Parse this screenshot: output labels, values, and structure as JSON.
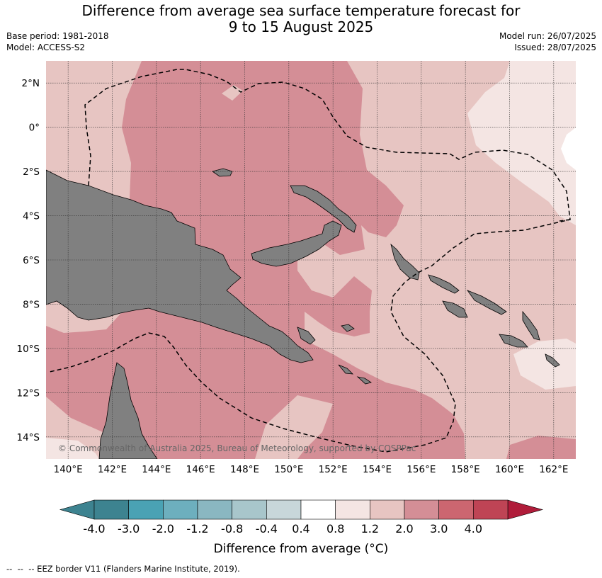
{
  "title": {
    "line1": "Difference from average sea surface temperature forecast for",
    "line2": "9 to 15 August 2025"
  },
  "meta": {
    "base_period": "Base period: 1981-2018",
    "model": "Model: ACCESS-S2",
    "model_run": "Model run: 26/07/2025",
    "issued": "Issued: 28/07/2025"
  },
  "map": {
    "lon_range": [
      139,
      163
    ],
    "lat_range": [
      -15,
      3
    ],
    "lon_ticks": [
      {
        "v": 140,
        "label": "140°E"
      },
      {
        "v": 142,
        "label": "142°E"
      },
      {
        "v": 144,
        "label": "144°E"
      },
      {
        "v": 146,
        "label": "146°E"
      },
      {
        "v": 148,
        "label": "148°E"
      },
      {
        "v": 150,
        "label": "150°E"
      },
      {
        "v": 152,
        "label": "152°E"
      },
      {
        "v": 154,
        "label": "154°E"
      },
      {
        "v": 156,
        "label": "156°E"
      },
      {
        "v": 158,
        "label": "158°E"
      },
      {
        "v": 160,
        "label": "160°E"
      },
      {
        "v": 162,
        "label": "162°E"
      }
    ],
    "lat_ticks": [
      {
        "v": 2,
        "label": "2°N"
      },
      {
        "v": 0,
        "label": "0°"
      },
      {
        "v": -2,
        "label": "2°S"
      },
      {
        "v": -4,
        "label": "4°S"
      },
      {
        "v": -6,
        "label": "6°S"
      },
      {
        "v": -8,
        "label": "8°S"
      },
      {
        "v": -10,
        "label": "10°S"
      },
      {
        "v": -12,
        "label": "12°S"
      },
      {
        "v": -14,
        "label": "14°S"
      }
    ],
    "grid": true,
    "land_color": "#808080",
    "copyright": "© Commonwealth of Australia 2025, Bureau of Meteorology, supported by COSPPac"
  },
  "colorbar": {
    "title": "Difference from average (°C)",
    "labels": [
      "-4.0",
      "-3.0",
      "-2.0",
      "-1.2",
      "-0.8",
      "-0.4",
      "0.4",
      "0.8",
      "1.2",
      "2.0",
      "3.0",
      "4.0"
    ],
    "colors": [
      "#3d8390",
      "#4aa2b4",
      "#6dafbe",
      "#8ab7c1",
      "#a8c6cb",
      "#c8d7da",
      "#ffffff",
      "#f4e5e3",
      "#e7c5c2",
      "#d48e96",
      "#cc6670",
      "#bf4455"
    ],
    "under_color": "#3d8390",
    "over_color": "#b01c3a"
  },
  "footer": "--  --  -- EEZ border V11 (Flanders Marine Institute, 2019)."
}
